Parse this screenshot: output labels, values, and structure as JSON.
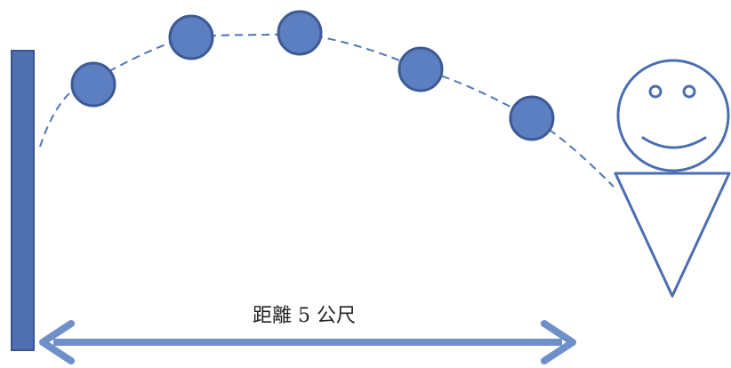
{
  "distance_label": "距離 5 公尺",
  "colors": {
    "wall_fill": "#4f6fae",
    "wall_stroke": "#3a5590",
    "ball_fill": "#5b7fc1",
    "ball_stroke": "#3d5a95",
    "trajectory": "#4f74b8",
    "arrow": "#6f8fc9",
    "figure_stroke": "#4a6eb0",
    "label": "#222222"
  },
  "icons": {
    "wall": "vertical-bar",
    "balls": "filled-circle",
    "person": "smiley-figure",
    "arrow": "double-headed-arrow"
  },
  "ball_count": 5
}
